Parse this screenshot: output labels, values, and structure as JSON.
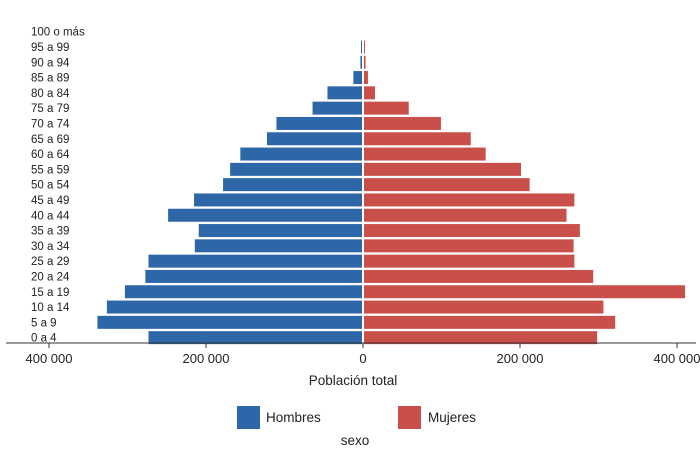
{
  "chart_data": {
    "type": "bar",
    "orientation": "horizontal-population-pyramid",
    "categories": [
      "0 a 4",
      "5 a 9",
      "10 a 14",
      "15 a 19",
      "20 a 24",
      "25 a 29",
      "30 a 34",
      "35 a 39",
      "40 a 44",
      "45 a 49",
      "50 a 54",
      "55 a 59",
      "60 a 64",
      "65 a 69",
      "70 a 74",
      "75 a 79",
      "80 a 84",
      "85 a 89",
      "90 a 94",
      "95 a 99",
      "100 o más"
    ],
    "series": [
      {
        "name": "Hombres",
        "color": "#2e67a8",
        "side": "left",
        "values": [
          272000,
          337000,
          325000,
          302000,
          276000,
          272000,
          213000,
          208000,
          247000,
          214000,
          177000,
          168000,
          155000,
          121000,
          109000,
          63000,
          44000,
          11000,
          2000,
          500,
          0
        ]
      },
      {
        "name": "Mujeres",
        "color": "#c9504a",
        "side": "right",
        "values": [
          297000,
          320000,
          305000,
          409000,
          292000,
          268000,
          267000,
          275000,
          258000,
          268000,
          211000,
          200000,
          155000,
          136000,
          98000,
          57000,
          14000,
          5000,
          2000,
          500,
          0
        ]
      }
    ],
    "xlim": [
      -420000,
      420000
    ],
    "x_ticks": [
      -400000,
      -200000,
      0,
      200000,
      400000
    ],
    "x_tick_labels": [
      "400 000",
      "200 000",
      "0",
      "200 000",
      "400 000"
    ],
    "xlabel": "Población total",
    "legend_title": "sexo",
    "legend_position": "bottom",
    "grid": false
  }
}
